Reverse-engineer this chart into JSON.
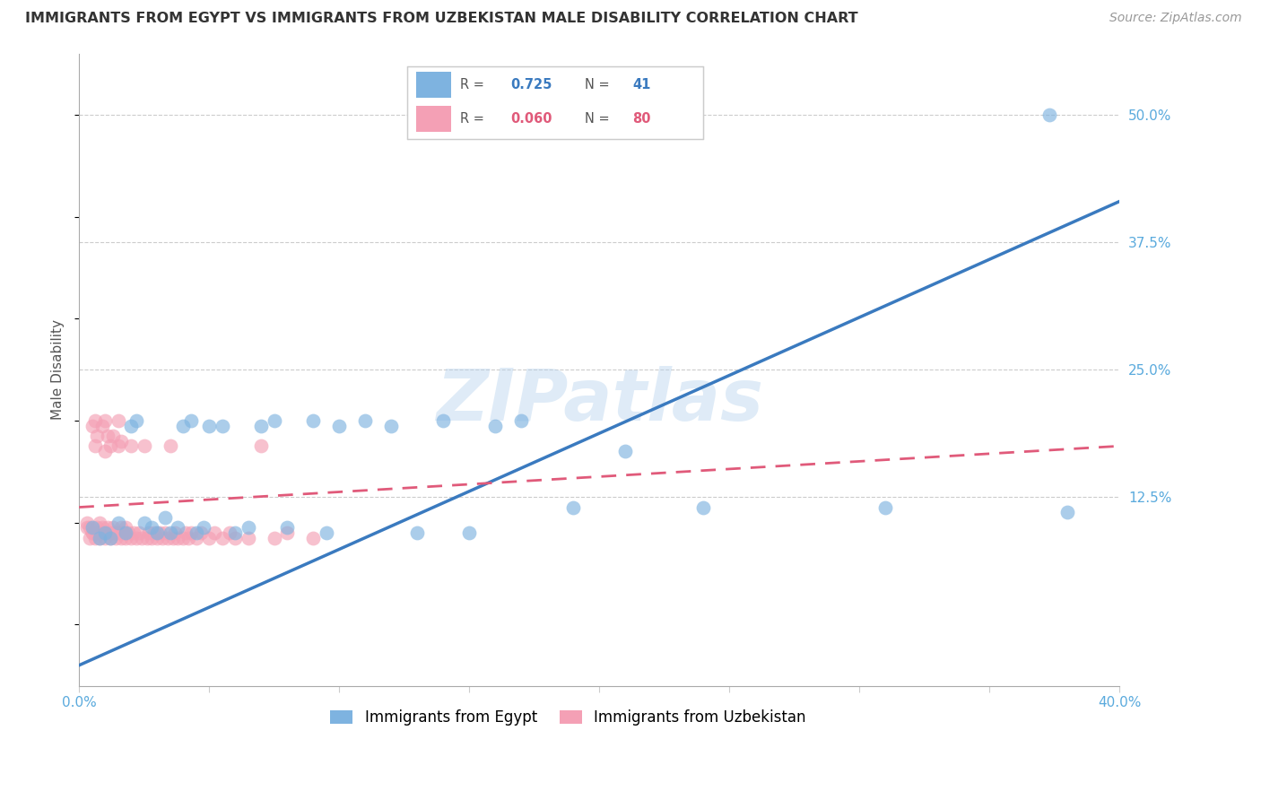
{
  "title": "IMMIGRANTS FROM EGYPT VS IMMIGRANTS FROM UZBEKISTAN MALE DISABILITY CORRELATION CHART",
  "source": "Source: ZipAtlas.com",
  "ylabel": "Male Disability",
  "xlim": [
    0.0,
    0.4
  ],
  "ylim": [
    -0.06,
    0.56
  ],
  "xtick_vals": [
    0.0,
    0.05,
    0.1,
    0.15,
    0.2,
    0.25,
    0.3,
    0.35,
    0.4
  ],
  "xticklabels": [
    "0.0%",
    "",
    "",
    "",
    "",
    "",
    "",
    "",
    "40.0%"
  ],
  "yticks_right": [
    0.125,
    0.25,
    0.375,
    0.5
  ],
  "ytick_right_labels": [
    "12.5%",
    "25.0%",
    "37.5%",
    "50.0%"
  ],
  "grid_yticks": [
    0.125,
    0.25,
    0.375,
    0.5
  ],
  "egypt_color": "#7eb3e0",
  "uzbekistan_color": "#f4a0b5",
  "egypt_line_color": "#3a7abf",
  "uzbekistan_line_color": "#e05a7a",
  "egypt_R": 0.725,
  "egypt_N": 41,
  "uzbekistan_R": 0.06,
  "uzbekistan_N": 80,
  "legend_egypt_label": "Immigrants from Egypt",
  "legend_uzbekistan_label": "Immigrants from Uzbekistan",
  "watermark": "ZIPatlas",
  "egypt_line_x0": 0.0,
  "egypt_line_y0": -0.04,
  "egypt_line_x1": 0.4,
  "egypt_line_y1": 0.415,
  "uzbek_line_x0": 0.0,
  "uzbek_line_y0": 0.115,
  "uzbek_line_x1": 0.4,
  "uzbek_line_y1": 0.175,
  "egypt_x": [
    0.005,
    0.008,
    0.01,
    0.012,
    0.015,
    0.018,
    0.02,
    0.022,
    0.025,
    0.028,
    0.03,
    0.033,
    0.035,
    0.038,
    0.04,
    0.043,
    0.045,
    0.048,
    0.05,
    0.055,
    0.06,
    0.065,
    0.07,
    0.075,
    0.08,
    0.09,
    0.095,
    0.1,
    0.11,
    0.12,
    0.13,
    0.14,
    0.15,
    0.16,
    0.17,
    0.19,
    0.21,
    0.24,
    0.31,
    0.373,
    0.38
  ],
  "egypt_y": [
    0.095,
    0.085,
    0.09,
    0.085,
    0.1,
    0.09,
    0.195,
    0.2,
    0.1,
    0.095,
    0.09,
    0.105,
    0.09,
    0.095,
    0.195,
    0.2,
    0.09,
    0.095,
    0.195,
    0.195,
    0.09,
    0.095,
    0.195,
    0.2,
    0.095,
    0.2,
    0.09,
    0.195,
    0.2,
    0.195,
    0.09,
    0.2,
    0.09,
    0.195,
    0.2,
    0.115,
    0.17,
    0.115,
    0.115,
    0.5,
    0.11
  ],
  "uzbek_x": [
    0.003,
    0.004,
    0.005,
    0.005,
    0.006,
    0.006,
    0.007,
    0.007,
    0.008,
    0.008,
    0.009,
    0.009,
    0.01,
    0.01,
    0.011,
    0.011,
    0.012,
    0.012,
    0.013,
    0.013,
    0.014,
    0.015,
    0.015,
    0.016,
    0.016,
    0.017,
    0.018,
    0.019,
    0.02,
    0.02,
    0.021,
    0.022,
    0.023,
    0.024,
    0.025,
    0.026,
    0.027,
    0.028,
    0.029,
    0.03,
    0.031,
    0.032,
    0.033,
    0.034,
    0.035,
    0.036,
    0.037,
    0.038,
    0.04,
    0.041,
    0.042,
    0.043,
    0.045,
    0.047,
    0.05,
    0.052,
    0.055,
    0.058,
    0.06,
    0.065,
    0.07,
    0.075,
    0.08,
    0.09,
    0.003,
    0.004,
    0.005,
    0.006,
    0.007,
    0.008,
    0.009,
    0.01,
    0.011,
    0.012,
    0.013,
    0.014,
    0.015,
    0.016,
    0.017,
    0.018
  ],
  "uzbek_y": [
    0.095,
    0.085,
    0.09,
    0.195,
    0.085,
    0.175,
    0.09,
    0.185,
    0.085,
    0.1,
    0.09,
    0.195,
    0.085,
    0.17,
    0.09,
    0.185,
    0.085,
    0.175,
    0.09,
    0.185,
    0.085,
    0.09,
    0.175,
    0.085,
    0.18,
    0.09,
    0.085,
    0.09,
    0.085,
    0.175,
    0.09,
    0.085,
    0.09,
    0.085,
    0.175,
    0.085,
    0.09,
    0.085,
    0.09,
    0.085,
    0.09,
    0.085,
    0.09,
    0.085,
    0.175,
    0.085,
    0.09,
    0.085,
    0.085,
    0.09,
    0.085,
    0.09,
    0.085,
    0.09,
    0.085,
    0.09,
    0.085,
    0.09,
    0.085,
    0.085,
    0.175,
    0.085,
    0.09,
    0.085,
    0.1,
    0.095,
    0.09,
    0.2,
    0.095,
    0.09,
    0.095,
    0.2,
    0.095,
    0.09,
    0.095,
    0.09,
    0.2,
    0.095,
    0.09,
    0.095
  ]
}
